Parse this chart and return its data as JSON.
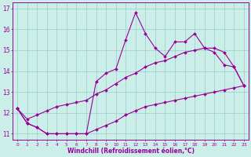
{
  "x": [
    0,
    1,
    2,
    3,
    4,
    5,
    6,
    7,
    8,
    9,
    10,
    11,
    12,
    13,
    14,
    15,
    16,
    17,
    18,
    19,
    20,
    21,
    22,
    23
  ],
  "y_main": [
    12.2,
    11.5,
    11.3,
    11.0,
    11.0,
    11.0,
    11.0,
    11.0,
    13.5,
    13.9,
    14.1,
    15.5,
    16.8,
    15.8,
    15.1,
    14.7,
    15.4,
    15.4,
    15.8,
    15.1,
    14.9,
    14.3,
    14.2,
    13.3
  ],
  "y_upper": [
    12.2,
    11.7,
    11.9,
    12.1,
    12.3,
    12.4,
    12.5,
    12.6,
    12.9,
    13.1,
    13.4,
    13.7,
    13.9,
    14.2,
    14.4,
    14.5,
    14.7,
    14.9,
    15.0,
    15.1,
    15.1,
    14.9,
    14.2,
    13.3
  ],
  "y_lower": [
    12.2,
    11.5,
    11.3,
    11.0,
    11.0,
    11.0,
    11.0,
    11.0,
    11.2,
    11.4,
    11.6,
    11.9,
    12.1,
    12.3,
    12.4,
    12.5,
    12.6,
    12.7,
    12.8,
    12.9,
    13.0,
    13.1,
    13.2,
    13.3
  ],
  "line_color": "#990099",
  "bg_color": "#cceee8",
  "grid_color": "#99cccc",
  "xlabel": "Windchill (Refroidissement éolien,°C)",
  "xlim": [
    -0.5,
    23.5
  ],
  "ylim": [
    10.7,
    17.3
  ],
  "yticks": [
    11,
    12,
    13,
    14,
    15,
    16,
    17
  ],
  "xticks": [
    0,
    1,
    2,
    3,
    4,
    5,
    6,
    7,
    8,
    9,
    10,
    11,
    12,
    13,
    14,
    15,
    16,
    17,
    18,
    19,
    20,
    21,
    22,
    23
  ]
}
